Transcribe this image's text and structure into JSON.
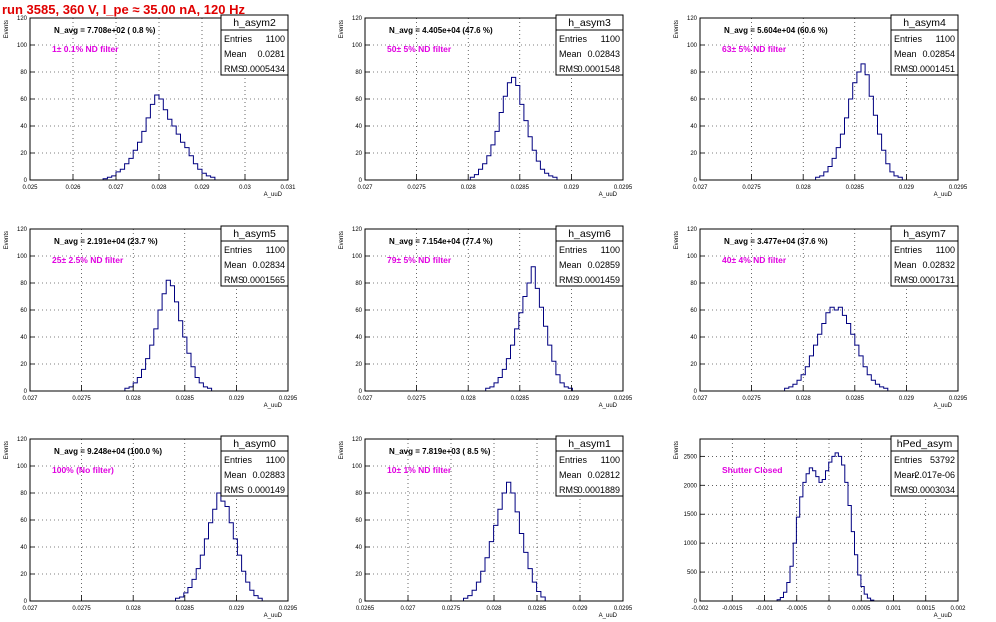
{
  "page_title": "run 3585,   360 V, I_pe ≈ 35.00 nA, 120 Hz",
  "colors": {
    "title": "#e00000",
    "hist": "#000080",
    "annotation": "#e000e0",
    "grid": "#000000"
  },
  "chart_data": [
    {
      "type": "bar",
      "name": "h_asym2",
      "nav_label": "N_avg = 7.708e+02 ( 0.8 %)",
      "filter_label": "1± 0.1% ND filter",
      "stats": {
        "entries": "1100",
        "mean": "0.0281",
        "rms": "0.0005434"
      },
      "xlabel": "A_uuD",
      "ylabel": "Events",
      "xlim": [
        0.025,
        0.031
      ],
      "ylim": [
        0,
        120
      ],
      "xticks": [
        "0.025",
        "0.026",
        "0.027",
        "0.028",
        "0.029",
        "0.03",
        "0.031"
      ],
      "yticks": [
        "0",
        "20",
        "40",
        "60",
        "80",
        "100",
        "120"
      ],
      "bins": {
        "centers": [
          0.02675,
          0.02685,
          0.02695,
          0.02705,
          0.02715,
          0.02725,
          0.02735,
          0.02745,
          0.02755,
          0.02765,
          0.02775,
          0.02785,
          0.02795,
          0.02805,
          0.02815,
          0.02825,
          0.02835,
          0.02845,
          0.02855,
          0.02865,
          0.02875,
          0.02885,
          0.02895,
          0.02905,
          0.02915,
          0.02925
        ],
        "values": [
          1,
          2,
          3,
          6,
          8,
          12,
          16,
          22,
          28,
          36,
          46,
          56,
          63,
          60,
          52,
          45,
          40,
          34,
          28,
          24,
          18,
          12,
          8,
          5,
          3,
          2
        ]
      }
    },
    {
      "type": "bar",
      "name": "h_asym3",
      "nav_label": "N_avg = 4.405e+04 (47.6 %)",
      "filter_label": "50± 5% ND filter",
      "stats": {
        "entries": "1100",
        "mean": "0.02843",
        "rms": "0.0001548"
      },
      "xlabel": "A_uuD",
      "ylabel": "Events",
      "xlim": [
        0.027,
        0.0295
      ],
      "ylim": [
        0,
        120
      ],
      "xticks": [
        "0.027",
        "0.0275",
        "0.028",
        "0.0285",
        "0.029",
        "0.0295"
      ],
      "yticks": [
        "0",
        "20",
        "40",
        "60",
        "80",
        "100",
        "120"
      ],
      "bins": {
        "centers": [
          0.02804,
          0.02808,
          0.02812,
          0.02816,
          0.0282,
          0.02824,
          0.02828,
          0.02832,
          0.02836,
          0.0284,
          0.02844,
          0.02848,
          0.02852,
          0.02856,
          0.0286,
          0.02864,
          0.02868,
          0.02872,
          0.02876,
          0.0288,
          0.02884
        ],
        "values": [
          2,
          4,
          8,
          12,
          18,
          26,
          36,
          50,
          62,
          72,
          76,
          70,
          56,
          44,
          32,
          22,
          14,
          8,
          5,
          3,
          2
        ]
      }
    },
    {
      "type": "bar",
      "name": "h_asym4",
      "nav_label": "N_avg = 5.604e+04 (60.6 %)",
      "filter_label": "63± 5% ND filter",
      "stats": {
        "entries": "1100",
        "mean": "0.02854",
        "rms": "0.0001451"
      },
      "xlabel": "A_uuD",
      "ylabel": "Events",
      "xlim": [
        0.027,
        0.0295
      ],
      "ylim": [
        0,
        120
      ],
      "xticks": [
        "0.027",
        "0.0275",
        "0.028",
        "0.0285",
        "0.029",
        "0.0295"
      ],
      "yticks": [
        "0",
        "20",
        "40",
        "60",
        "80",
        "100",
        "120"
      ],
      "bins": {
        "centers": [
          0.02814,
          0.02818,
          0.02822,
          0.02826,
          0.0283,
          0.02834,
          0.02838,
          0.02842,
          0.02846,
          0.0285,
          0.02854,
          0.02858,
          0.02862,
          0.02866,
          0.0287,
          0.02874,
          0.02878,
          0.02882,
          0.02886,
          0.0289,
          0.02894
        ],
        "values": [
          2,
          3,
          6,
          10,
          16,
          24,
          34,
          46,
          60,
          72,
          80,
          86,
          78,
          62,
          48,
          34,
          22,
          12,
          6,
          3,
          2
        ]
      }
    },
    {
      "type": "bar",
      "name": "h_asym5",
      "nav_label": "N_avg = 2.191e+04 (23.7 %)",
      "filter_label": "25± 2.5% ND filter",
      "stats": {
        "entries": "1100",
        "mean": "0.02834",
        "rms": "0.0001565"
      },
      "xlabel": "A_uuD",
      "ylabel": "Events",
      "xlim": [
        0.027,
        0.0295
      ],
      "ylim": [
        0,
        120
      ],
      "xticks": [
        "0.027",
        "0.0275",
        "0.028",
        "0.0285",
        "0.029",
        "0.0295"
      ],
      "yticks": [
        "0",
        "20",
        "40",
        "60",
        "80",
        "100",
        "120"
      ],
      "bins": {
        "centers": [
          0.02794,
          0.02798,
          0.02802,
          0.02806,
          0.0281,
          0.02814,
          0.02818,
          0.02822,
          0.02826,
          0.0283,
          0.02834,
          0.02838,
          0.02842,
          0.02846,
          0.0285,
          0.02854,
          0.02858,
          0.02862,
          0.02866,
          0.0287,
          0.02874
        ],
        "values": [
          2,
          3,
          6,
          10,
          16,
          24,
          34,
          46,
          60,
          72,
          82,
          78,
          66,
          52,
          40,
          28,
          18,
          10,
          6,
          3,
          2
        ]
      }
    },
    {
      "type": "bar",
      "name": "h_asym6",
      "nav_label": "N_avg = 7.154e+04 (77.4 %)",
      "filter_label": "79± 5% ND filter",
      "stats": {
        "entries": "1100",
        "mean": "0.02859",
        "rms": "0.0001459"
      },
      "xlabel": "A_uuD",
      "ylabel": "Events",
      "xlim": [
        0.027,
        0.0295
      ],
      "ylim": [
        0,
        120
      ],
      "xticks": [
        "0.027",
        "0.0275",
        "0.028",
        "0.0285",
        "0.029",
        "0.0295"
      ],
      "yticks": [
        "0",
        "20",
        "40",
        "60",
        "80",
        "100",
        "120"
      ],
      "bins": {
        "centers": [
          0.02819,
          0.02823,
          0.02827,
          0.02831,
          0.02835,
          0.02839,
          0.02843,
          0.02847,
          0.02851,
          0.02855,
          0.02859,
          0.02863,
          0.02867,
          0.02871,
          0.02875,
          0.02879,
          0.02883,
          0.02887,
          0.02891,
          0.02895,
          0.02899
        ],
        "values": [
          2,
          3,
          6,
          10,
          16,
          24,
          34,
          46,
          58,
          70,
          80,
          92,
          76,
          62,
          48,
          34,
          22,
          12,
          6,
          3,
          2
        ]
      }
    },
    {
      "type": "bar",
      "name": "h_asym7",
      "nav_label": "N_avg = 3.477e+04 (37.6 %)",
      "filter_label": "40± 4% ND filter",
      "stats": {
        "entries": "1100",
        "mean": "0.02832",
        "rms": "0.0001731"
      },
      "xlabel": "A_uuD",
      "ylabel": "Events",
      "xlim": [
        0.027,
        0.0295
      ],
      "ylim": [
        0,
        120
      ],
      "xticks": [
        "0.027",
        "0.0275",
        "0.028",
        "0.0285",
        "0.029",
        "0.0295"
      ],
      "yticks": [
        "0",
        "20",
        "40",
        "60",
        "80",
        "100",
        "120"
      ],
      "bins": {
        "centers": [
          0.02784,
          0.02788,
          0.02792,
          0.02796,
          0.028,
          0.02804,
          0.02808,
          0.02812,
          0.02816,
          0.0282,
          0.02824,
          0.02828,
          0.02832,
          0.02836,
          0.0284,
          0.02844,
          0.02848,
          0.02852,
          0.02856,
          0.0286,
          0.02864,
          0.02868,
          0.02872,
          0.02876,
          0.0288
        ],
        "values": [
          2,
          3,
          5,
          8,
          12,
          18,
          26,
          34,
          42,
          50,
          58,
          62,
          60,
          62,
          56,
          50,
          42,
          34,
          26,
          18,
          12,
          8,
          5,
          3,
          2
        ]
      }
    },
    {
      "type": "bar",
      "name": "h_asym0",
      "nav_label": "N_avg = 9.248e+04 (100.0 %)",
      "filter_label": "100% (No filter)",
      "stats": {
        "entries": "1100",
        "mean": "0.02883",
        "rms": "0.000149"
      },
      "xlabel": "A_uuD",
      "ylabel": "Events",
      "xlim": [
        0.027,
        0.0295
      ],
      "ylim": [
        0,
        120
      ],
      "xticks": [
        "0.027",
        "0.0275",
        "0.028",
        "0.0285",
        "0.029",
        "0.0295"
      ],
      "yticks": [
        "0",
        "20",
        "40",
        "60",
        "80",
        "100",
        "120"
      ],
      "bins": {
        "centers": [
          0.02843,
          0.02847,
          0.02851,
          0.02855,
          0.02859,
          0.02863,
          0.02867,
          0.02871,
          0.02875,
          0.02879,
          0.02883,
          0.02887,
          0.02891,
          0.02895,
          0.02899,
          0.02903,
          0.02907,
          0.02911,
          0.02915,
          0.02919,
          0.02923
        ],
        "values": [
          2,
          3,
          6,
          10,
          16,
          24,
          34,
          46,
          58,
          68,
          80,
          74,
          70,
          58,
          46,
          34,
          22,
          14,
          8,
          4,
          2
        ]
      }
    },
    {
      "type": "bar",
      "name": "h_asym1",
      "nav_label": "N_avg = 7.819e+03 ( 8.5 %)",
      "filter_label": "10± 1% ND filter",
      "stats": {
        "entries": "1100",
        "mean": "0.02812",
        "rms": "0.0001889"
      },
      "xlabel": "A_uuD",
      "ylabel": "Events",
      "xlim": [
        0.0265,
        0.0295
      ],
      "ylim": [
        0,
        120
      ],
      "xticks": [
        "0.0265",
        "0.027",
        "0.0275",
        "0.028",
        "0.0285",
        "0.029",
        "0.0295"
      ],
      "yticks": [
        "0",
        "20",
        "40",
        "60",
        "80",
        "100",
        "120"
      ],
      "bins": {
        "centers": [
          0.02767,
          0.02772,
          0.02777,
          0.02782,
          0.02787,
          0.02792,
          0.02797,
          0.02802,
          0.02807,
          0.02812,
          0.02817,
          0.02822,
          0.02827,
          0.02832,
          0.02837,
          0.02842,
          0.02847,
          0.02852,
          0.02857
        ],
        "values": [
          2,
          4,
          8,
          14,
          22,
          32,
          44,
          56,
          68,
          80,
          88,
          80,
          66,
          50,
          36,
          24,
          14,
          7,
          3
        ]
      }
    },
    {
      "type": "bar",
      "name": "hPed_asym",
      "nav_label": "",
      "filter_label": "Shutter Closed",
      "stats": {
        "entries": "53792",
        "mean": "-2.017e-06",
        "rms": "0.0003034"
      },
      "xlabel": "A_uuD",
      "ylabel": "Events",
      "xlim": [
        -0.002,
        0.002
      ],
      "ylim": [
        0,
        2800
      ],
      "xticks": [
        "-0.002",
        "-0.0015",
        "-0.001",
        "-0.0005",
        "0",
        "0.0005",
        "0.001",
        "0.0015",
        "0.002"
      ],
      "yticks": [
        "0",
        "500",
        "1000",
        "1500",
        "2000",
        "2500"
      ],
      "bins": {
        "centers": [
          -0.00078,
          -0.00073,
          -0.00068,
          -0.00063,
          -0.00058,
          -0.00053,
          -0.00048,
          -0.00043,
          -0.00038,
          -0.00033,
          -0.00028,
          -0.00023,
          -0.00018,
          -0.00013,
          -8e-05,
          -3e-05,
          2e-05,
          7e-05,
          0.00012,
          0.00017,
          0.00022,
          0.00027,
          0.00032,
          0.00037,
          0.00042,
          0.00047,
          0.00052,
          0.00057,
          0.00062,
          0.00067
        ],
        "values": [
          20,
          60,
          150,
          320,
          600,
          1000,
          1450,
          1800,
          2050,
          2200,
          2300,
          2250,
          2150,
          2050,
          2100,
          2250,
          2400,
          2500,
          2560,
          2500,
          2350,
          2050,
          1650,
          1200,
          800,
          450,
          250,
          120,
          50,
          15
        ]
      }
    }
  ]
}
